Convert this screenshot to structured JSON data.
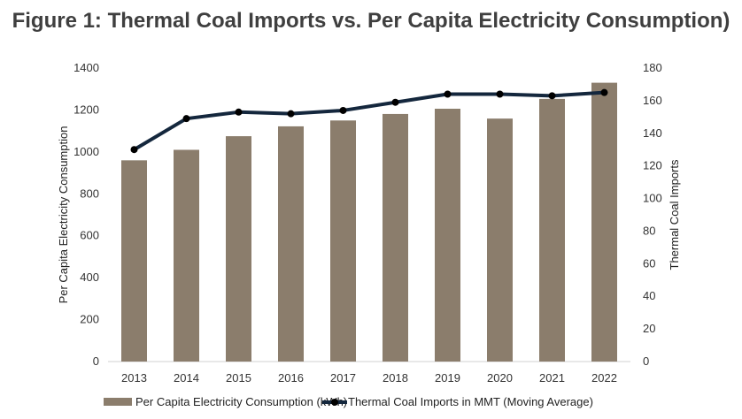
{
  "chart_data": {
    "type": "bar+line",
    "title": "Figure 1: Thermal Coal Imports vs. Per Capita Electricity Consumption)",
    "categories": [
      "2013",
      "2014",
      "2015",
      "2016",
      "2017",
      "2018",
      "2019",
      "2020",
      "2021",
      "2022"
    ],
    "series": [
      {
        "name": "Per Capita Electricity Consumption (kWh)",
        "type": "bar",
        "axis": "left",
        "color": "#8b7d6c",
        "values": [
          960,
          1010,
          1075,
          1122,
          1150,
          1181,
          1206,
          1159,
          1253,
          1330
        ]
      },
      {
        "name": "Thermal Coal Imports in MMT (Moving Average)",
        "type": "line",
        "axis": "right",
        "color": "#14273d",
        "values": [
          130,
          149,
          153,
          152,
          154,
          159,
          164,
          164,
          163,
          165
        ]
      }
    ],
    "ylabel": "Per Capita Electricity Consumption",
    "y2label": "Thermal Coal Imports",
    "ylim": [
      0,
      1400
    ],
    "y2lim": [
      0,
      180
    ],
    "yticks": [
      "0",
      "200",
      "400",
      "600",
      "800",
      "1000",
      "1200",
      "1400"
    ],
    "y2ticks": [
      "0",
      "20",
      "40",
      "60",
      "80",
      "100",
      "120",
      "140",
      "160",
      "180"
    ],
    "grid": false,
    "legend": "bottom"
  }
}
